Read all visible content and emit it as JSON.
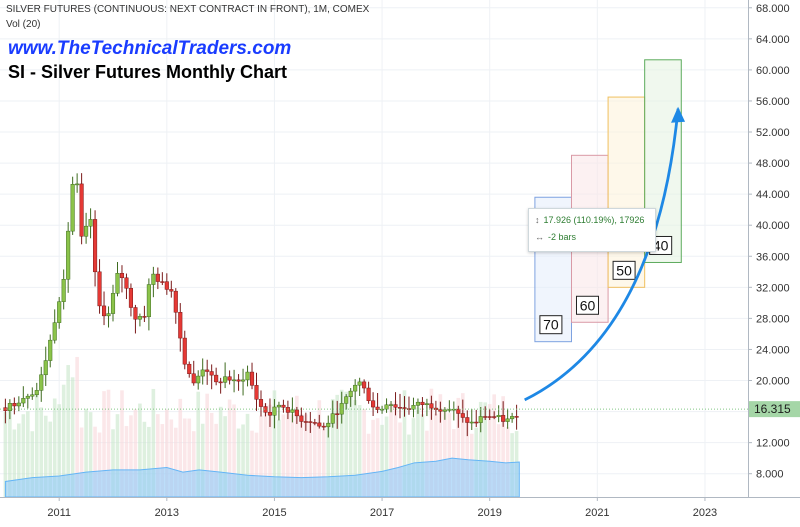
{
  "header": {
    "title": "SILVER FUTURES (CONTINUOUS: NEXT CONTRACT IN FRONT), 1M, COMEX",
    "volume_label": "Vol (20)",
    "website": "www.TheTechnicalTraders.com",
    "subtitle": "SI - Silver Futures Monthly Chart"
  },
  "tooltip": {
    "range_text": "17.926 (110.19%), 17926",
    "bars_text": "-2 bars"
  },
  "chart_data": {
    "type": "candlestick",
    "x_unit": "year",
    "xlim": [
      2009.9,
      2023.8
    ],
    "ylim": [
      5.0,
      69.0
    ],
    "x_ticks": [
      {
        "x": 2011,
        "label": "2011"
      },
      {
        "x": 2013,
        "label": "2013"
      },
      {
        "x": 2015,
        "label": "2015"
      },
      {
        "x": 2017,
        "label": "2017"
      },
      {
        "x": 2019,
        "label": "2019"
      },
      {
        "x": 2021,
        "label": "2021"
      },
      {
        "x": 2023,
        "label": "2023"
      }
    ],
    "y_ticks": [
      {
        "v": 8,
        "label": "8.000"
      },
      {
        "v": 12,
        "label": "12.000"
      },
      {
        "v": 16,
        "label": "16.000"
      },
      {
        "v": 20,
        "label": "20.000"
      },
      {
        "v": 24,
        "label": "24.000"
      },
      {
        "v": 28,
        "label": "28.000"
      },
      {
        "v": 32,
        "label": "32.000"
      },
      {
        "v": 36,
        "label": "36.000"
      },
      {
        "v": 40,
        "label": "40.000"
      },
      {
        "v": 44,
        "label": "44.000"
      },
      {
        "v": 48,
        "label": "48.000"
      },
      {
        "v": 52,
        "label": "52.000"
      },
      {
        "v": 56,
        "label": "56.000"
      },
      {
        "v": 60,
        "label": "60.000"
      },
      {
        "v": 64,
        "label": "64.000"
      },
      {
        "v": 68,
        "label": "68.000"
      }
    ],
    "grid": true,
    "up_color": "#8bc34a",
    "down_color": "#e53935",
    "last_price": {
      "value": 16.315,
      "label": "16.315",
      "color": "#a5d6a7"
    },
    "close_path": [
      [
        2010.0,
        16.5
      ],
      [
        2010.2,
        17.2
      ],
      [
        2010.4,
        18.2
      ],
      [
        2010.6,
        18.8
      ],
      [
        2010.8,
        24.0
      ],
      [
        2011.0,
        30.5
      ],
      [
        2011.1,
        34.0
      ],
      [
        2011.2,
        42.0
      ],
      [
        2011.3,
        48.5
      ],
      [
        2011.4,
        38.0
      ],
      [
        2011.6,
        41.0
      ],
      [
        2011.7,
        30.0
      ],
      [
        2011.9,
        28.0
      ],
      [
        2012.1,
        34.0
      ],
      [
        2012.2,
        33.0
      ],
      [
        2012.4,
        28.0
      ],
      [
        2012.6,
        28.5
      ],
      [
        2012.7,
        34.0
      ],
      [
        2012.9,
        32.5
      ],
      [
        2013.1,
        31.5
      ],
      [
        2013.2,
        28.0
      ],
      [
        2013.3,
        23.0
      ],
      [
        2013.5,
        19.5
      ],
      [
        2013.7,
        22.0
      ],
      [
        2013.9,
        19.5
      ],
      [
        2014.1,
        20.5
      ],
      [
        2014.3,
        19.5
      ],
      [
        2014.5,
        21.0
      ],
      [
        2014.7,
        17.0
      ],
      [
        2014.9,
        15.5
      ],
      [
        2015.1,
        17.0
      ],
      [
        2015.3,
        16.0
      ],
      [
        2015.5,
        15.0
      ],
      [
        2015.7,
        14.8
      ],
      [
        2015.9,
        13.8
      ],
      [
        2016.1,
        15.5
      ],
      [
        2016.3,
        17.2
      ],
      [
        2016.5,
        19.5
      ],
      [
        2016.6,
        19.8
      ],
      [
        2016.8,
        17.0
      ],
      [
        2016.95,
        16.0
      ],
      [
        2017.1,
        17.3
      ],
      [
        2017.3,
        16.5
      ],
      [
        2017.5,
        16.5
      ],
      [
        2017.7,
        17.0
      ],
      [
        2017.9,
        16.8
      ],
      [
        2018.1,
        16.4
      ],
      [
        2018.3,
        16.3
      ],
      [
        2018.5,
        15.0
      ],
      [
        2018.7,
        14.4
      ],
      [
        2018.9,
        15.5
      ],
      [
        2019.1,
        15.3
      ],
      [
        2019.3,
        14.8
      ],
      [
        2019.45,
        15.2
      ],
      [
        2019.55,
        16.3
      ]
    ],
    "volume_area": [
      [
        2010.0,
        7.0
      ],
      [
        2010.5,
        7.5
      ],
      [
        2011.0,
        7.7
      ],
      [
        2011.5,
        8.2
      ],
      [
        2012.0,
        8.5
      ],
      [
        2012.5,
        8.5
      ],
      [
        2013.0,
        8.8
      ],
      [
        2013.3,
        8.2
      ],
      [
        2013.6,
        8.5
      ],
      [
        2014.0,
        8.2
      ],
      [
        2014.5,
        7.8
      ],
      [
        2015.0,
        7.6
      ],
      [
        2015.5,
        7.5
      ],
      [
        2016.0,
        7.6
      ],
      [
        2016.5,
        7.8
      ],
      [
        2017.0,
        8.3
      ],
      [
        2017.3,
        8.8
      ],
      [
        2017.6,
        9.4
      ],
      [
        2018.0,
        9.6
      ],
      [
        2018.3,
        10.0
      ],
      [
        2018.6,
        9.8
      ],
      [
        2019.0,
        9.6
      ],
      [
        2019.3,
        9.4
      ],
      [
        2019.55,
        9.5
      ]
    ],
    "projection_boxes": [
      {
        "label": "70",
        "x0": 2019.84,
        "x1": 2020.52,
        "y_low": 25.0,
        "y_high": 43.6,
        "stroke": "#7ea2e0",
        "fill": "#e3ecfb"
      },
      {
        "label": "60",
        "x0": 2020.52,
        "x1": 2021.2,
        "y_low": 27.5,
        "y_high": 49.0,
        "stroke": "#d99aa6",
        "fill": "#f9e5e8"
      },
      {
        "label": "50",
        "x0": 2021.2,
        "x1": 2021.88,
        "y_low": 32.0,
        "y_high": 56.5,
        "stroke": "#f0c060",
        "fill": "#fdf2d8"
      },
      {
        "label": "40",
        "x0": 2021.88,
        "x1": 2022.56,
        "y_low": 35.2,
        "y_high": 61.3,
        "stroke": "#5cab5c",
        "fill": "#e3f2e0"
      }
    ],
    "forecast_arrow": {
      "from": [
        2019.65,
        17.5
      ],
      "to": [
        2022.5,
        55.0
      ],
      "color": "#1e88e5"
    }
  }
}
